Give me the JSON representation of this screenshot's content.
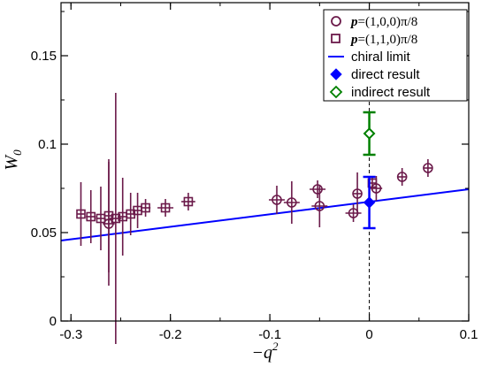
{
  "chart_data": {
    "type": "scatter",
    "title": "",
    "xlabel": "−q",
    "xlabel_sup": "2",
    "ylabel": "W",
    "ylabel_sub": "0",
    "xlim": [
      -0.31,
      0.1
    ],
    "ylim": [
      0,
      0.18
    ],
    "x_ticks": [
      -0.3,
      -0.2,
      -0.1,
      0,
      0.1
    ],
    "x_tick_labels": [
      "-0.3",
      "-0.2",
      "-0.1",
      "0",
      "0.1"
    ],
    "y_ticks": [
      0,
      0.05,
      0.1,
      0.15
    ],
    "y_tick_labels": [
      "0",
      "0.05",
      "0.1",
      "0.15"
    ],
    "legend_position": "top-right",
    "colors": {
      "data_points": "#6b1a4a",
      "chiral_limit": "#0000ff",
      "direct": "#0000ff",
      "indirect": "#008000"
    },
    "series": [
      {
        "name": "p=(1,0,0)π/8",
        "legend_bold": "p",
        "legend_rest": "=(1,0,0)π/8",
        "marker": "circle",
        "points": [
          {
            "x": -0.262,
            "y": 0.055,
            "xerr": 0.006,
            "yerr": 0.035
          },
          {
            "x": -0.093,
            "y": 0.0685,
            "xerr": 0.008,
            "yerr": 0.008
          },
          {
            "x": -0.078,
            "y": 0.067,
            "xerr": 0.008,
            "yerr": 0.012
          },
          {
            "x": -0.052,
            "y": 0.0745,
            "xerr": 0.008,
            "yerr": 0.005
          },
          {
            "x": -0.05,
            "y": 0.065,
            "xerr": 0.008,
            "yerr": 0.012
          },
          {
            "x": -0.016,
            "y": 0.061,
            "xerr": 0.008,
            "yerr": 0.005
          },
          {
            "x": -0.012,
            "y": 0.072,
            "xerr": 0.004,
            "yerr": 0.012
          },
          {
            "x": 0.007,
            "y": 0.075,
            "xerr": 0.006,
            "yerr": 0.007
          },
          {
            "x": 0.033,
            "y": 0.0815,
            "xerr": 0.004,
            "yerr": 0.005
          },
          {
            "x": 0.059,
            "y": 0.0865,
            "xerr": 0.004,
            "yerr": 0.005
          }
        ]
      },
      {
        "name": "p=(1,1,0)π/8",
        "legend_bold": "p",
        "legend_rest": "=(1,1,0)π/8",
        "marker": "square",
        "points": [
          {
            "x": -0.29,
            "y": 0.0605,
            "xerr": 0.004,
            "yerr": 0.018
          },
          {
            "x": -0.28,
            "y": 0.059,
            "xerr": 0.005,
            "yerr": 0.015
          },
          {
            "x": -0.27,
            "y": 0.058,
            "xerr": 0.005,
            "yerr": 0.018
          },
          {
            "x": -0.262,
            "y": 0.0595,
            "xerr": 0.005,
            "yerr": 0.032
          },
          {
            "x": -0.255,
            "y": 0.058,
            "xerr": 0.006,
            "yerr": 0.071
          },
          {
            "x": -0.248,
            "y": 0.059,
            "xerr": 0.005,
            "yerr": 0.022
          },
          {
            "x": -0.24,
            "y": 0.0605,
            "xerr": 0.005,
            "yerr": 0.012
          },
          {
            "x": -0.233,
            "y": 0.0625,
            "xerr": 0.005,
            "yerr": 0.01
          },
          {
            "x": -0.225,
            "y": 0.064,
            "xerr": 0.005,
            "yerr": 0.005
          },
          {
            "x": -0.205,
            "y": 0.064,
            "xerr": 0.008,
            "yerr": 0.005
          },
          {
            "x": -0.182,
            "y": 0.0675,
            "xerr": 0.007,
            "yerr": 0.005
          },
          {
            "x": 0.003,
            "y": 0.078,
            "xerr": 0.004,
            "yerr": 0.004
          }
        ]
      },
      {
        "name": "chiral limit",
        "type": "line",
        "x": [
          -0.31,
          0.1
        ],
        "y": [
          0.0455,
          0.0745
        ]
      },
      {
        "name": "direct result",
        "marker": "diamond-filled",
        "points": [
          {
            "x": 0,
            "y": 0.067,
            "yerr": 0.0145
          }
        ]
      },
      {
        "name": "indirect result",
        "marker": "diamond-open",
        "points": [
          {
            "x": 0,
            "y": 0.106,
            "yerr": 0.012
          }
        ]
      }
    ],
    "annotations": [
      {
        "type": "vertical-dashed-line",
        "x": 0
      }
    ]
  }
}
